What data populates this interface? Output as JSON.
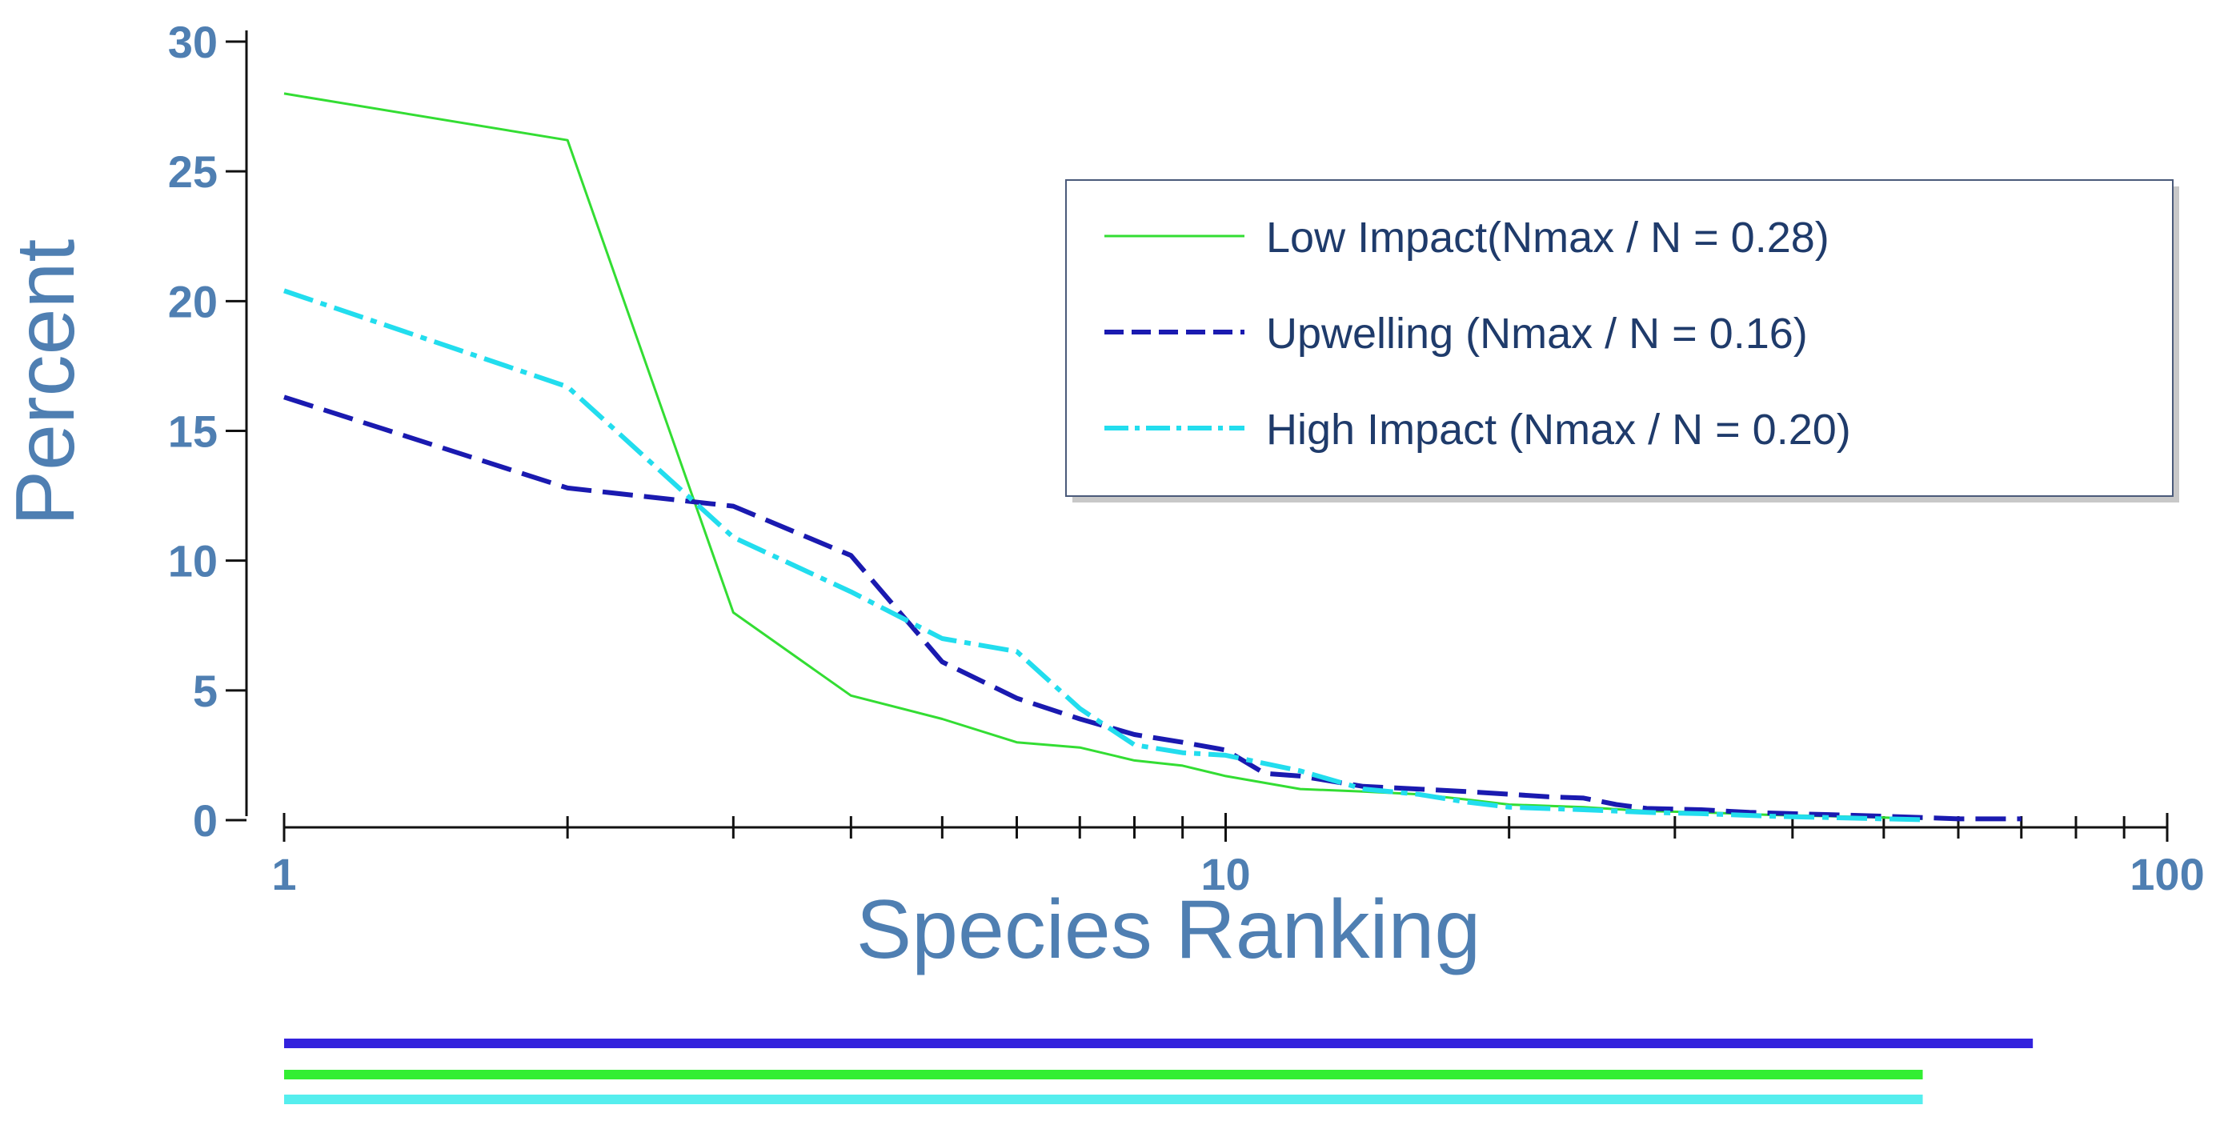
{
  "chart_data": {
    "type": "line",
    "xlabel": "Species Ranking",
    "ylabel": "Percent",
    "xscale": "log",
    "xlim": [
      1,
      100
    ],
    "ylim": [
      0,
      30
    ],
    "x_ticks": [
      "1",
      "10",
      "100"
    ],
    "y_ticks": [
      "0",
      "5",
      "10",
      "15",
      "20",
      "25",
      "30"
    ],
    "grid": false,
    "legend_position": "top-right",
    "series": [
      {
        "name": "Low Impact(Nmax / N = 0.28)",
        "color": "#33dd33",
        "dash": "solid",
        "x": [
          1,
          2,
          3,
          4,
          5,
          6,
          7,
          8,
          9,
          10,
          12,
          14,
          16,
          18,
          20,
          24,
          28,
          32,
          38,
          44,
          50,
          55
        ],
        "y": [
          28.0,
          26.2,
          8.0,
          4.8,
          3.9,
          3.0,
          2.8,
          2.3,
          2.1,
          1.7,
          1.2,
          1.1,
          1.0,
          0.8,
          0.6,
          0.5,
          0.35,
          0.3,
          0.2,
          0.15,
          0.1,
          0.05
        ]
      },
      {
        "name": "Upwelling (Nmax / N = 0.16)",
        "color": "#1a1ab0",
        "dash": "dashed",
        "x": [
          1,
          2,
          3,
          4,
          5,
          6,
          7,
          8,
          9,
          10,
          11,
          12,
          14,
          16,
          18,
          20,
          22,
          24,
          26,
          28,
          32,
          36,
          40,
          45,
          50,
          55,
          60,
          70
        ],
        "y": [
          16.3,
          12.8,
          12.1,
          10.2,
          6.1,
          4.7,
          3.9,
          3.3,
          3.0,
          2.7,
          1.8,
          1.7,
          1.3,
          1.2,
          1.1,
          1.0,
          0.9,
          0.85,
          0.6,
          0.45,
          0.4,
          0.3,
          0.25,
          0.2,
          0.15,
          0.1,
          0.05,
          0.05
        ]
      },
      {
        "name": "High Impact (Nmax / N = 0.20)",
        "color": "#22ddee",
        "dash": "dash-dot",
        "x": [
          1,
          2,
          3,
          4,
          5,
          6,
          7,
          8,
          9,
          10,
          12,
          14,
          16,
          18,
          20,
          24,
          28,
          32,
          38,
          44,
          50,
          55
        ],
        "y": [
          20.4,
          16.7,
          10.9,
          8.8,
          7.0,
          6.5,
          4.3,
          2.9,
          2.6,
          2.5,
          1.9,
          1.2,
          1.0,
          0.7,
          0.5,
          0.4,
          0.3,
          0.25,
          0.15,
          0.1,
          0.05,
          0.02
        ]
      }
    ],
    "range_bars": [
      {
        "color": "#3322dd",
        "x_start": 1,
        "x_end": 72
      },
      {
        "color": "#33ee33",
        "x_start": 1,
        "x_end": 55
      },
      {
        "color": "#55eeee",
        "x_start": 1,
        "x_end": 55
      }
    ]
  }
}
